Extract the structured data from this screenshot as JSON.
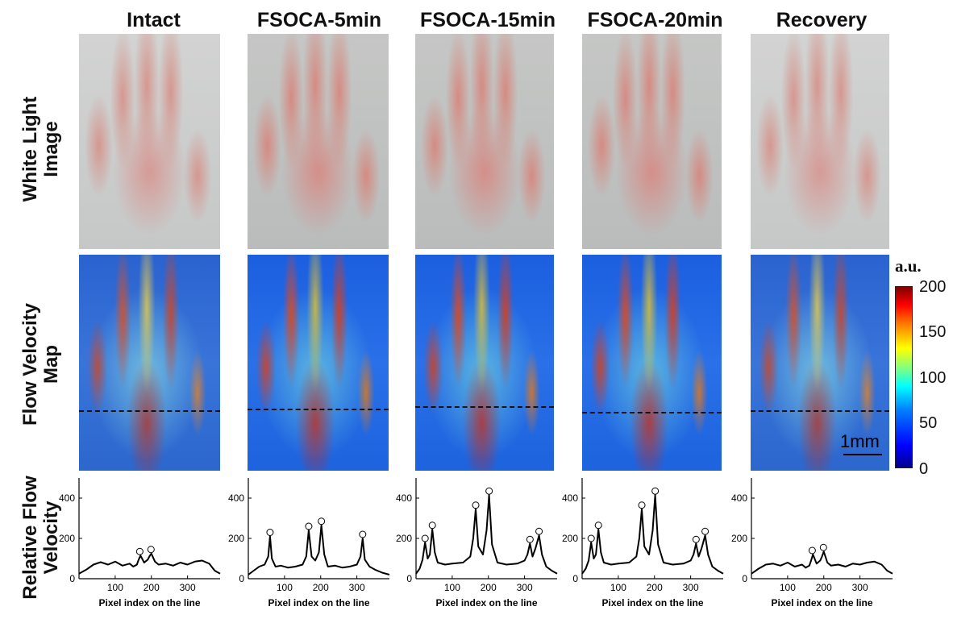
{
  "columns": [
    {
      "title": "Intact"
    },
    {
      "title": "FSOCA-5min"
    },
    {
      "title": "FSOCA-15min"
    },
    {
      "title": "FSOCA-20min"
    },
    {
      "title": "Recovery"
    }
  ],
  "rows": {
    "white_light": "White Light\nImage",
    "flow_map": "Flow Velocity\nMap",
    "relative": "Relative Flow\nVelocity"
  },
  "colorbar": {
    "unit": "a.u.",
    "ticks": [
      "200",
      "150",
      "100",
      "50",
      "0"
    ],
    "range": [
      0,
      200
    ],
    "colormap": "jet"
  },
  "scalebar": {
    "label": "1mm"
  },
  "chart_data": [
    {
      "type": "line",
      "xlabel": "Pixel index on the line",
      "ylabel": "Relative Flow Velocity",
      "xlim": [
        0,
        390
      ],
      "ylim": [
        0,
        500
      ],
      "xticks": [
        100,
        200,
        300
      ],
      "yticks": [
        0,
        200,
        400
      ],
      "x": [
        0,
        20,
        40,
        60,
        80,
        100,
        120,
        140,
        150,
        160,
        165,
        170,
        180,
        190,
        195,
        200,
        210,
        220,
        240,
        260,
        280,
        300,
        320,
        340,
        360,
        375,
        390
      ],
      "y": [
        25,
        45,
        70,
        82,
        70,
        85,
        65,
        75,
        60,
        70,
        95,
        115,
        80,
        95,
        112,
        125,
        85,
        70,
        75,
        65,
        80,
        70,
        85,
        90,
        75,
        40,
        25
      ],
      "peaks": [
        [
          168,
          115
        ],
        [
          199,
          125
        ]
      ]
    },
    {
      "type": "line",
      "xlabel": "Pixel index on the line",
      "ylabel": "Relative Flow Velocity",
      "xlim": [
        0,
        390
      ],
      "ylim": [
        0,
        500
      ],
      "xticks": [
        100,
        200,
        300
      ],
      "yticks": [
        0,
        200,
        400
      ],
      "x": [
        0,
        15,
        30,
        45,
        55,
        60,
        65,
        75,
        90,
        110,
        130,
        150,
        160,
        167,
        175,
        185,
        195,
        202,
        210,
        220,
        240,
        260,
        280,
        300,
        310,
        316,
        322,
        335,
        350,
        370,
        390
      ],
      "y": [
        20,
        40,
        60,
        70,
        110,
        210,
        100,
        60,
        65,
        55,
        60,
        70,
        110,
        240,
        110,
        90,
        130,
        265,
        120,
        60,
        65,
        55,
        60,
        70,
        110,
        200,
        95,
        60,
        45,
        30,
        20
      ],
      "peaks": [
        [
          60,
          210
        ],
        [
          167,
          240
        ],
        [
          202,
          265
        ],
        [
          316,
          200
        ]
      ]
    },
    {
      "type": "line",
      "xlabel": "Pixel index on the line",
      "ylabel": "Relative Flow Velocity",
      "xlim": [
        0,
        390
      ],
      "ylim": [
        0,
        500
      ],
      "xticks": [
        100,
        200,
        300
      ],
      "yticks": [
        0,
        200,
        400
      ],
      "x": [
        0,
        10,
        18,
        25,
        32,
        38,
        45,
        52,
        60,
        80,
        100,
        130,
        150,
        158,
        165,
        172,
        185,
        195,
        202,
        210,
        225,
        250,
        280,
        300,
        308,
        315,
        322,
        330,
        340,
        348,
        360,
        375,
        390
      ],
      "y": [
        25,
        50,
        95,
        180,
        100,
        120,
        245,
        130,
        80,
        70,
        75,
        80,
        110,
        200,
        345,
        160,
        120,
        240,
        415,
        170,
        80,
        70,
        75,
        90,
        120,
        175,
        110,
        150,
        215,
        120,
        60,
        40,
        25
      ],
      "peaks": [
        [
          25,
          180
        ],
        [
          45,
          245
        ],
        [
          165,
          345
        ],
        [
          202,
          415
        ],
        [
          315,
          175
        ],
        [
          340,
          215
        ]
      ]
    },
    {
      "type": "line",
      "xlabel": "Pixel index on the line",
      "ylabel": "Relative Flow Velocity",
      "xlim": [
        0,
        390
      ],
      "ylim": [
        0,
        500
      ],
      "xticks": [
        100,
        200,
        300
      ],
      "yticks": [
        0,
        200,
        400
      ],
      "x": [
        0,
        10,
        18,
        25,
        32,
        38,
        45,
        52,
        60,
        80,
        100,
        130,
        150,
        158,
        165,
        172,
        185,
        195,
        202,
        210,
        225,
        250,
        280,
        300,
        308,
        315,
        322,
        330,
        340,
        348,
        360,
        375,
        390
      ],
      "y": [
        25,
        50,
        90,
        180,
        100,
        120,
        245,
        130,
        80,
        70,
        75,
        80,
        110,
        200,
        345,
        160,
        120,
        240,
        415,
        170,
        80,
        70,
        75,
        90,
        120,
        175,
        110,
        150,
        215,
        120,
        60,
        40,
        25
      ],
      "peaks": [
        [
          25,
          180
        ],
        [
          45,
          245
        ],
        [
          165,
          345
        ],
        [
          202,
          415
        ],
        [
          315,
          175
        ],
        [
          340,
          215
        ]
      ]
    },
    {
      "type": "line",
      "xlabel": "Pixel index on the line",
      "ylabel": "Relative Flow Velocity",
      "xlim": [
        0,
        390
      ],
      "ylim": [
        0,
        500
      ],
      "xticks": [
        100,
        200,
        300
      ],
      "yticks": [
        0,
        200,
        400
      ],
      "x": [
        0,
        20,
        40,
        60,
        80,
        100,
        120,
        140,
        150,
        160,
        165,
        170,
        180,
        190,
        195,
        200,
        210,
        220,
        240,
        260,
        280,
        300,
        320,
        340,
        360,
        375,
        390
      ],
      "y": [
        25,
        50,
        70,
        75,
        65,
        80,
        60,
        70,
        55,
        65,
        90,
        120,
        75,
        90,
        110,
        135,
        80,
        65,
        70,
        60,
        75,
        70,
        80,
        85,
        70,
        40,
        25
      ],
      "peaks": [
        [
          168,
          120
        ],
        [
          199,
          135
        ]
      ]
    }
  ]
}
